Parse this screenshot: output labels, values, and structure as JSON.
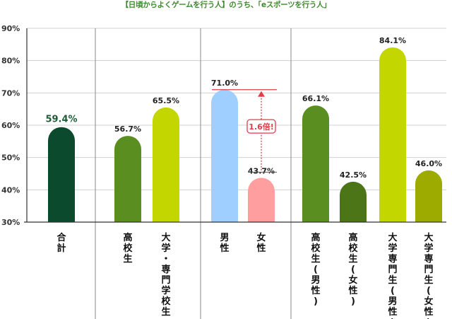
{
  "title": "【日頃からよくゲームを行う人】のうち、「eスポーツを行う人」",
  "annotation": "1.6倍!",
  "colors": {
    "title": "#3d8a2c",
    "highlight_label": "#1f5c37",
    "annotation": "#e23c4b",
    "grid": "#d0d0d0",
    "axis": "#333333"
  },
  "chart_data": {
    "type": "bar",
    "ylim": [
      30,
      90
    ],
    "yticks": [
      30,
      40,
      50,
      60,
      70,
      80,
      90
    ],
    "ytick_labels": [
      "30%",
      "40%",
      "50%",
      "60%",
      "70%",
      "80%",
      "90%"
    ],
    "grid": true,
    "categories": [
      "合計",
      "高校生",
      "大学・専門学校生",
      "男性",
      "女性",
      "高校生(男性)",
      "高校生(女性)",
      "大学専門生(男性)",
      "大学専門生(女性)"
    ],
    "values": [
      59.4,
      56.7,
      65.5,
      71.0,
      43.7,
      66.1,
      42.5,
      84.1,
      46.0
    ],
    "value_labels": [
      "59.4%",
      "56.7%",
      "65.5%",
      "71.0%",
      "43.7%",
      "66.1%",
      "42.5%",
      "84.1%",
      "46.0%"
    ],
    "bar_colors": [
      "#0b4a2c",
      "#5a8e21",
      "#c4d600",
      "#9ecfff",
      "#ff9e9e",
      "#5a8e21",
      "#4b7516",
      "#c4d600",
      "#9dab00"
    ],
    "groups": [
      [
        0
      ],
      [
        1,
        2
      ],
      [
        3,
        4
      ],
      [
        5,
        6,
        7,
        8
      ]
    ],
    "highlight_index": 0,
    "comparison": {
      "from": 4,
      "to": 3
    }
  }
}
